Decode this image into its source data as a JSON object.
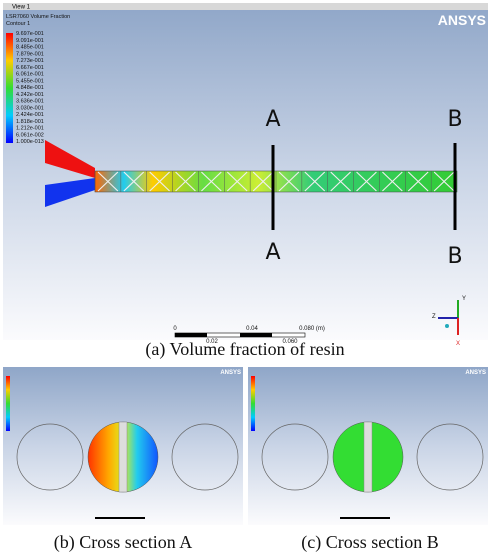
{
  "view_label": "View 1",
  "logo": "ANSYS",
  "legend": {
    "title": "LSR7060 Volume Fraction",
    "subtitle": "Contour 1",
    "values": [
      "9.697e-001",
      "9.091e-001",
      "8.485e-001",
      "7.879e-001",
      "7.273e-001",
      "6.667e-001",
      "6.061e-001",
      "5.455e-001",
      "4.848e-001",
      "4.242e-001",
      "3.636e-001",
      "3.030e-001",
      "2.424e-001",
      "1.818e-001",
      "1.212e-001",
      "6.061e-002",
      "1.000e-013"
    ]
  },
  "section_labels": {
    "a_top": "A",
    "a_bottom": "A",
    "b_top": "B",
    "b_bottom": "B"
  },
  "scale_bar": {
    "top": [
      "0",
      "0.04",
      "0.080 (m)"
    ],
    "bottom": [
      "0.02",
      "0.060"
    ]
  },
  "axes": {
    "z": "Z",
    "y": "Y",
    "x": "X"
  },
  "captions": {
    "a": "(a) Volume fraction of resin",
    "b": "(b) Cross section A",
    "c": "(c) Cross section B"
  },
  "panels": [
    {
      "logo": "ANSYS"
    },
    {
      "logo": "ANSYS"
    }
  ]
}
